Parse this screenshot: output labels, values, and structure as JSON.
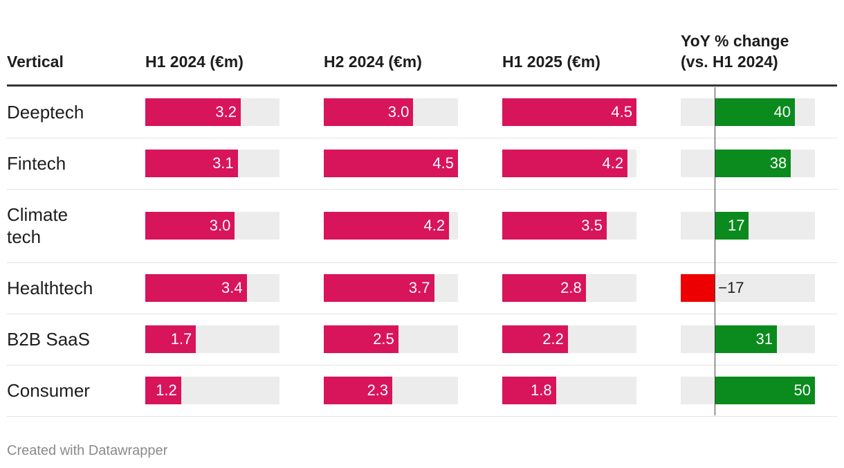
{
  "header": {
    "vertical": "Vertical",
    "h1_2024": "H1 2024 (€m)",
    "h2_2024": "H2 2024 (€m)",
    "h1_2025": "H1 2025 (€m)",
    "yoy": "YoY % change\n(vs. H1 2024)"
  },
  "colors": {
    "bar": "#d8145b",
    "positive": "#0b8a1d",
    "negative": "#ee0000",
    "track": "#ececec"
  },
  "footer": "Created with Datawrapper",
  "chart_data": {
    "type": "table",
    "columns": [
      "Vertical",
      "H1 2024 (€m)",
      "H2 2024 (€m)",
      "H1 2025 (€m)",
      "YoY % change (vs. H1 2024)"
    ],
    "bar_scale_max": 4.5,
    "yoy_range": [
      -17,
      50
    ],
    "rows": [
      {
        "vertical": "Deeptech",
        "h1_2024": 3.2,
        "h2_2024": 3.0,
        "h1_2025": 4.5,
        "yoy": 40,
        "h1_2024_label": "3.2",
        "h2_2024_label": "3.0",
        "h1_2025_label": "4.5",
        "yoy_label": "40"
      },
      {
        "vertical": "Fintech",
        "h1_2024": 3.1,
        "h2_2024": 4.5,
        "h1_2025": 4.2,
        "yoy": 38,
        "h1_2024_label": "3.1",
        "h2_2024_label": "4.5",
        "h1_2025_label": "4.2",
        "yoy_label": "38"
      },
      {
        "vertical": "Climate\ntech",
        "h1_2024": 3.0,
        "h2_2024": 4.2,
        "h1_2025": 3.5,
        "yoy": 17,
        "h1_2024_label": "3.0",
        "h2_2024_label": "4.2",
        "h1_2025_label": "3.5",
        "yoy_label": "17"
      },
      {
        "vertical": "Healthtech",
        "h1_2024": 3.4,
        "h2_2024": 3.7,
        "h1_2025": 2.8,
        "yoy": -17,
        "h1_2024_label": "3.4",
        "h2_2024_label": "3.7",
        "h1_2025_label": "2.8",
        "yoy_label": "−17"
      },
      {
        "vertical": "B2B SaaS",
        "h1_2024": 1.7,
        "h2_2024": 2.5,
        "h1_2025": 2.2,
        "yoy": 31,
        "h1_2024_label": "1.7",
        "h2_2024_label": "2.5",
        "h1_2025_label": "2.2",
        "yoy_label": "31"
      },
      {
        "vertical": "Consumer",
        "h1_2024": 1.2,
        "h2_2024": 2.3,
        "h1_2025": 1.8,
        "yoy": 50,
        "h1_2024_label": "1.2",
        "h2_2024_label": "2.3",
        "h1_2025_label": "1.8",
        "yoy_label": "50"
      }
    ]
  }
}
